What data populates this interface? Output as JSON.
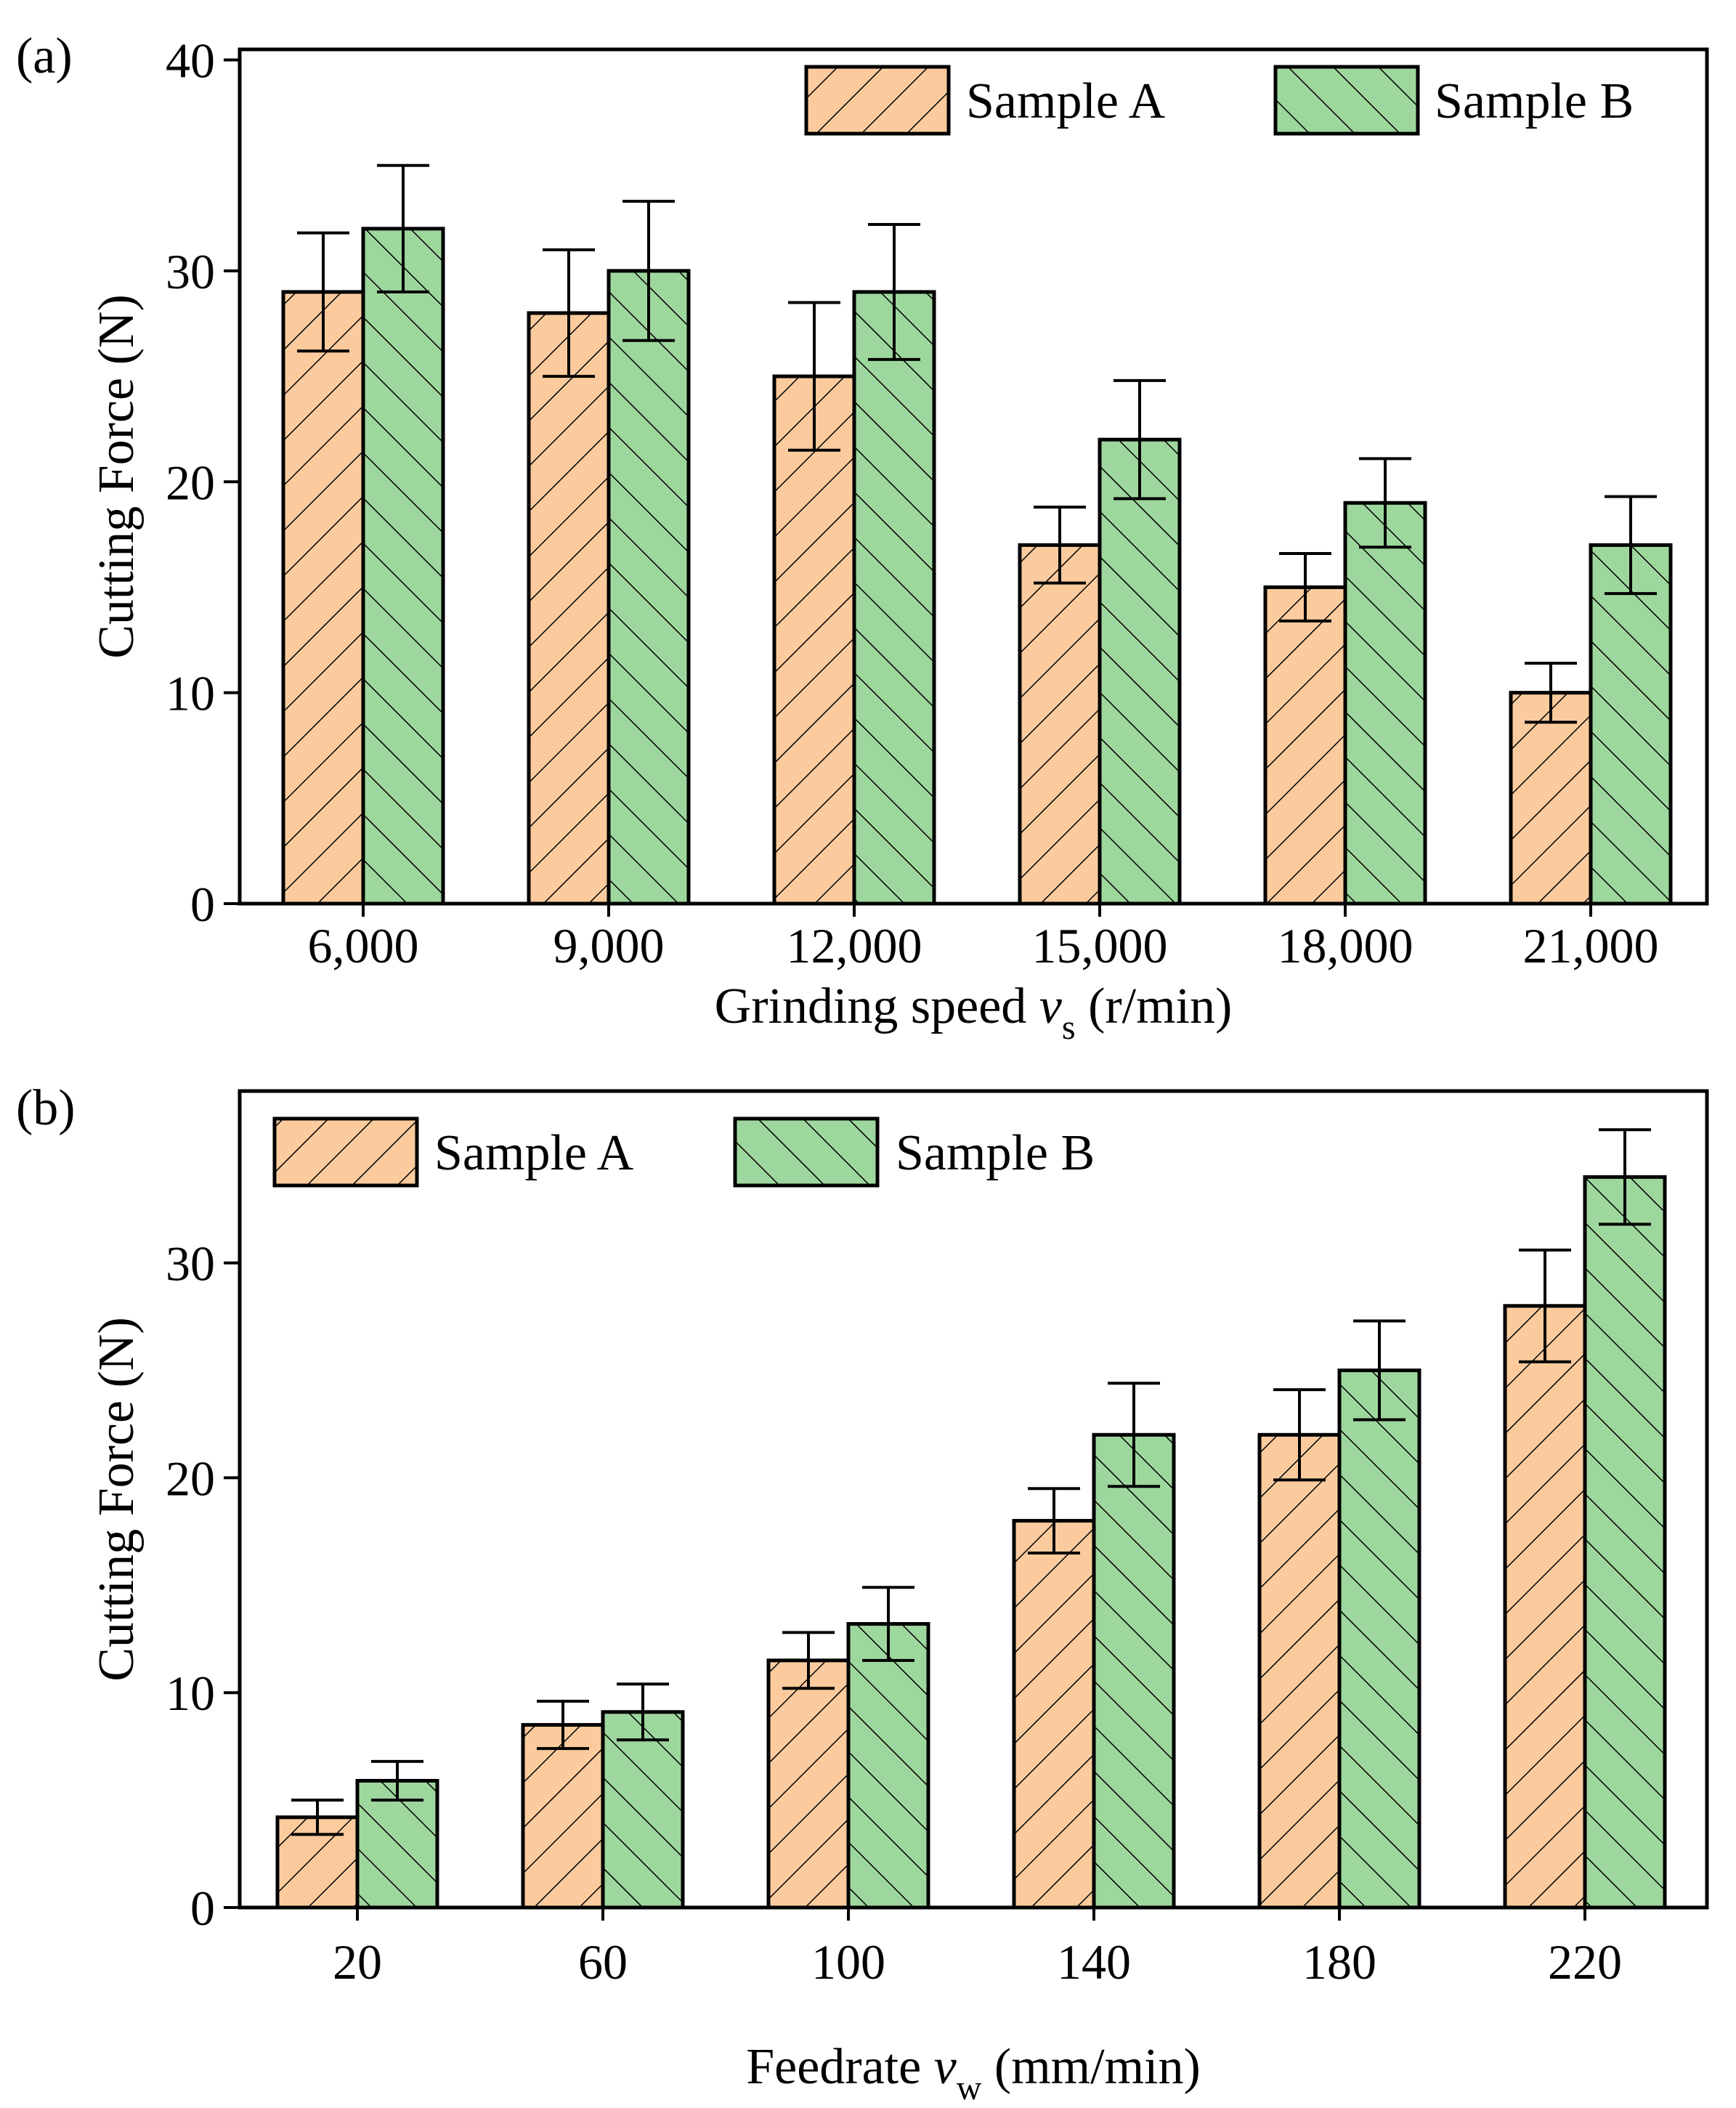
{
  "colors": {
    "sample_a_fill": "#FBCB9E",
    "sample_b_fill": "#9ED79E",
    "stroke": "#000000",
    "background": "#FFFFFF"
  },
  "chart_data": [
    {
      "panel_label": "(a)",
      "type": "bar",
      "pattern": "hatched",
      "error_bars": true,
      "categories": [
        "6,000",
        "9,000",
        "12,000",
        "15,000",
        "18,000",
        "21,000"
      ],
      "xlabel_main": "Grinding speed ",
      "xlabel_var": "v",
      "xlabel_sub": "s",
      "xlabel_unit": " (r/min)",
      "ylabel": "Cutting Force (N)",
      "ylim": [
        0,
        40.5
      ],
      "yticks": [
        0,
        10,
        20,
        30,
        40
      ],
      "grid": false,
      "legend_position": "top-right",
      "series": [
        {
          "name": "Sample A",
          "color": "#FBCB9E",
          "hatch": "forward",
          "values": [
            29,
            28,
            25,
            17,
            15,
            10
          ],
          "errors": [
            2.8,
            3.0,
            3.5,
            1.8,
            1.6,
            1.4
          ]
        },
        {
          "name": "Sample B",
          "color": "#9ED79E",
          "hatch": "backward",
          "values": [
            32,
            30,
            29,
            22,
            19,
            17
          ],
          "errors": [
            3.0,
            3.3,
            3.2,
            2.8,
            2.1,
            2.3
          ]
        }
      ]
    },
    {
      "panel_label": "(b)",
      "type": "bar",
      "pattern": "hatched",
      "error_bars": true,
      "categories": [
        "20",
        "60",
        "100",
        "140",
        "180",
        "220"
      ],
      "xlabel_main": "Feedrate ",
      "xlabel_var": "v",
      "xlabel_sub": "w",
      "xlabel_unit": " (mm/min)",
      "ylabel": "Cutting Force (N)",
      "ylim": [
        0,
        38
      ],
      "yticks": [
        0,
        10,
        20,
        30
      ],
      "grid": false,
      "legend_position": "top-left",
      "series": [
        {
          "name": "Sample A",
          "color": "#FBCB9E",
          "hatch": "forward",
          "values": [
            4.2,
            8.5,
            11.5,
            18,
            22,
            28
          ],
          "errors": [
            0.8,
            1.1,
            1.3,
            1.5,
            2.1,
            2.6
          ]
        },
        {
          "name": "Sample B",
          "color": "#9ED79E",
          "hatch": "backward",
          "values": [
            5.9,
            9.1,
            13.2,
            22,
            25,
            34
          ],
          "errors": [
            0.9,
            1.3,
            1.7,
            2.4,
            2.3,
            2.2
          ]
        }
      ]
    }
  ]
}
